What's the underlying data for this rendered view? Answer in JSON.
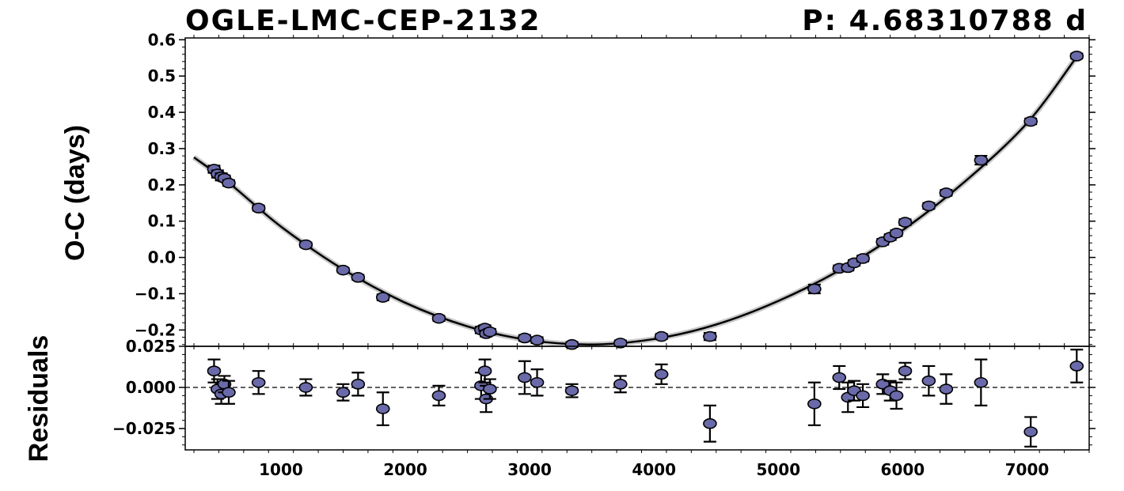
{
  "chart_data": [
    {
      "type": "scatter",
      "title": "OGLE-LMC-CEP-2132",
      "title_right": "P: 4.68310788 d",
      "xlabel": "",
      "ylabel": "O-C (days)",
      "xlim": [
        230,
        7500
      ],
      "ylim": [
        -0.245,
        0.605
      ],
      "yticks": [
        0.6,
        0.5,
        0.4,
        0.3,
        0.2,
        0.1,
        0.0,
        -0.1,
        -0.2
      ],
      "ytick_labels": [
        "0.6",
        "0.5",
        "0.4",
        "0.3",
        "0.2",
        "0.1",
        "0.0",
        "−0.1",
        "−0.2"
      ],
      "grid": false,
      "marker_color": "#6a6aaa",
      "fit_curve": {
        "type": "quadratic",
        "points": [
          [
            300,
            0.276
          ],
          [
            600,
            0.2
          ],
          [
            1000,
            0.085
          ],
          [
            1500,
            -0.033
          ],
          [
            2000,
            -0.125
          ],
          [
            2500,
            -0.19
          ],
          [
            3000,
            -0.228
          ],
          [
            3500,
            -0.24
          ],
          [
            4000,
            -0.225
          ],
          [
            4500,
            -0.185
          ],
          [
            5000,
            -0.12
          ],
          [
            5500,
            -0.034
          ],
          [
            6000,
            0.075
          ],
          [
            6500,
            0.209
          ],
          [
            7000,
            0.37
          ],
          [
            7400,
            0.553
          ]
        ]
      },
      "series": [
        {
          "x": [
            462,
            490,
            520,
            545,
            580,
            820,
            1200,
            1500,
            1620,
            1820,
            2270,
            2610,
            2640,
            2650,
            2680,
            2960,
            3060,
            3340,
            3730,
            4060,
            4450,
            5290,
            5490,
            5560,
            5610,
            5680,
            5840,
            5900,
            5950,
            6020,
            6210,
            6350,
            6630,
            7030,
            7400
          ],
          "y": [
            0.243,
            0.23,
            0.222,
            0.218,
            0.205,
            0.136,
            0.035,
            -0.035,
            -0.055,
            -0.11,
            -0.168,
            -0.2,
            -0.195,
            -0.21,
            -0.205,
            -0.222,
            -0.228,
            -0.24,
            -0.236,
            -0.218,
            -0.218,
            -0.087,
            -0.03,
            -0.028,
            -0.015,
            -0.003,
            0.043,
            0.056,
            0.067,
            0.097,
            0.142,
            0.178,
            0.268,
            0.375,
            0.555
          ],
          "yerr": [
            0.01,
            0.01,
            0.01,
            0.008,
            0.008,
            0.007,
            0.006,
            0.006,
            0.007,
            0.008,
            0.007,
            0.009,
            0.008,
            0.008,
            0.008,
            0.008,
            0.008,
            0.007,
            0.007,
            0.007,
            0.01,
            0.012,
            0.008,
            0.008,
            0.008,
            0.008,
            0.008,
            0.008,
            0.008,
            0.008,
            0.008,
            0.008,
            0.012,
            0.008,
            0.007
          ]
        }
      ]
    },
    {
      "type": "scatter",
      "title": "",
      "xlabel": "",
      "ylabel": "Residuals",
      "xlim": [
        230,
        7500
      ],
      "ylim": [
        -0.038,
        0.025
      ],
      "xticks": [
        1000,
        2000,
        3000,
        4000,
        5000,
        6000,
        7000
      ],
      "xtick_labels": [
        "1000",
        "2000",
        "3000",
        "4000",
        "5000",
        "6000",
        "7000"
      ],
      "yticks": [
        0.025,
        0.0,
        -0.025
      ],
      "ytick_labels": [
        "0.025",
        "0.000",
        "−0.025"
      ],
      "zero_line": "dashed",
      "grid": false,
      "marker_color": "#6a6aaa",
      "series": [
        {
          "x": [
            462,
            490,
            520,
            545,
            580,
            820,
            1200,
            1500,
            1620,
            1820,
            2270,
            2610,
            2640,
            2650,
            2680,
            2960,
            3060,
            3340,
            3730,
            4060,
            4450,
            5290,
            5490,
            5560,
            5610,
            5680,
            5840,
            5900,
            5950,
            6020,
            6210,
            6350,
            6630,
            7030,
            7400
          ],
          "y": [
            0.01,
            -0.001,
            -0.004,
            0.002,
            -0.003,
            0.003,
            0.0,
            -0.003,
            0.002,
            -0.013,
            -0.005,
            0.001,
            0.01,
            -0.007,
            -0.001,
            0.006,
            0.003,
            -0.002,
            0.002,
            0.008,
            -0.022,
            -0.01,
            0.006,
            -0.006,
            -0.002,
            -0.005,
            0.002,
            -0.002,
            -0.005,
            0.01,
            0.004,
            -0.001,
            0.003,
            -0.027,
            0.013
          ],
          "yerr": [
            0.007,
            0.006,
            0.006,
            0.005,
            0.007,
            0.007,
            0.005,
            0.005,
            0.007,
            0.01,
            0.006,
            0.008,
            0.007,
            0.008,
            0.006,
            0.01,
            0.008,
            0.004,
            0.005,
            0.006,
            0.011,
            0.013,
            0.007,
            0.009,
            0.006,
            0.007,
            0.006,
            0.006,
            0.008,
            0.005,
            0.009,
            0.009,
            0.014,
            0.009,
            0.01
          ]
        }
      ]
    }
  ]
}
